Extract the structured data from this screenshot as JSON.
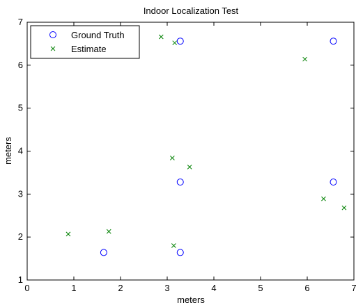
{
  "chart_data": {
    "type": "scatter",
    "title": "Indoor Localization Test",
    "xlabel": "meters",
    "ylabel": "meters",
    "xlim": [
      0,
      7
    ],
    "ylim": [
      1,
      7
    ],
    "xticks": [
      "0",
      "1",
      "2",
      "3",
      "4",
      "5",
      "6",
      "7"
    ],
    "yticks": [
      "1",
      "2",
      "3",
      "4",
      "5",
      "6",
      "7"
    ],
    "grid": false,
    "legend_position": "top-left",
    "series": [
      {
        "name": "Ground Truth",
        "marker": "circle",
        "color": "#0000ff",
        "points": [
          {
            "x": 3.28,
            "y": 6.56
          },
          {
            "x": 6.56,
            "y": 6.56
          },
          {
            "x": 3.28,
            "y": 3.28
          },
          {
            "x": 6.56,
            "y": 3.28
          },
          {
            "x": 1.64,
            "y": 1.64
          },
          {
            "x": 3.28,
            "y": 1.64
          }
        ]
      },
      {
        "name": "Estimate",
        "marker": "x",
        "color": "#008000",
        "points": [
          {
            "x": 2.87,
            "y": 6.66
          },
          {
            "x": 3.16,
            "y": 6.52
          },
          {
            "x": 5.95,
            "y": 6.14
          },
          {
            "x": 3.11,
            "y": 3.84
          },
          {
            "x": 3.48,
            "y": 3.63
          },
          {
            "x": 0.88,
            "y": 2.07
          },
          {
            "x": 1.75,
            "y": 2.13
          },
          {
            "x": 6.35,
            "y": 2.89
          },
          {
            "x": 6.79,
            "y": 2.68
          },
          {
            "x": 3.14,
            "y": 1.8
          }
        ]
      }
    ]
  }
}
